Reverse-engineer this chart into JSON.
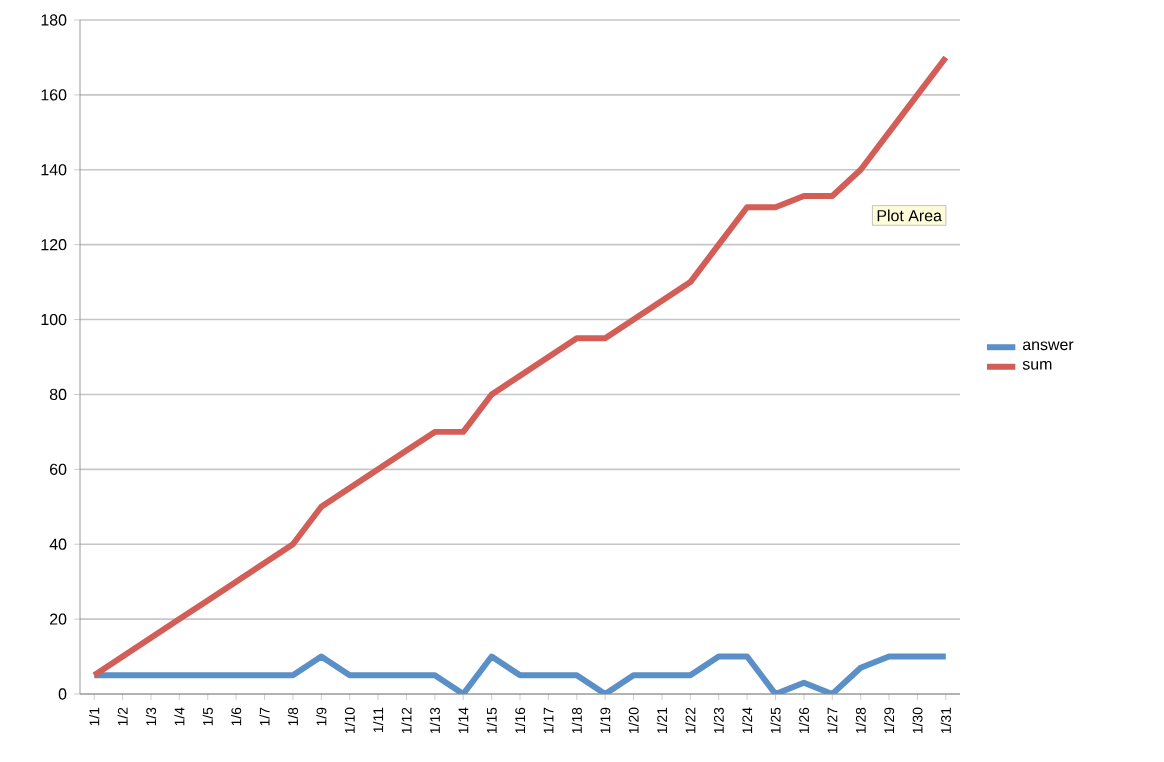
{
  "chart_data": {
    "type": "line",
    "categories": [
      "1/1",
      "1/2",
      "1/3",
      "1/4",
      "1/5",
      "1/6",
      "1/7",
      "1/8",
      "1/9",
      "1/10",
      "1/11",
      "1/12",
      "1/13",
      "1/14",
      "1/15",
      "1/16",
      "1/17",
      "1/18",
      "1/19",
      "1/20",
      "1/21",
      "1/22",
      "1/23",
      "1/24",
      "1/25",
      "1/26",
      "1/27",
      "1/28",
      "1/29",
      "1/30",
      "1/31"
    ],
    "series": [
      {
        "name": "answer",
        "color": "#5b8fc8",
        "values": [
          5,
          5,
          5,
          5,
          5,
          5,
          5,
          5,
          10,
          5,
          5,
          5,
          5,
          0,
          10,
          5,
          5,
          5,
          0,
          5,
          5,
          5,
          10,
          10,
          0,
          3,
          0,
          7,
          10,
          10,
          10
        ]
      },
      {
        "name": "sum",
        "color": "#d35d57",
        "values": [
          5,
          10,
          15,
          20,
          25,
          30,
          35,
          40,
          50,
          55,
          60,
          65,
          70,
          70,
          80,
          85,
          90,
          95,
          95,
          100,
          105,
          110,
          120,
          130,
          130,
          133,
          133,
          140,
          150,
          160,
          170
        ]
      }
    ],
    "ylim": [
      0,
      180
    ],
    "yticks": [
      0,
      20,
      40,
      60,
      80,
      100,
      120,
      140,
      160,
      180
    ],
    "grid": "y",
    "legend": "right",
    "marker": "none",
    "line_style": "solid",
    "annotations": [
      "Plot Area"
    ]
  }
}
